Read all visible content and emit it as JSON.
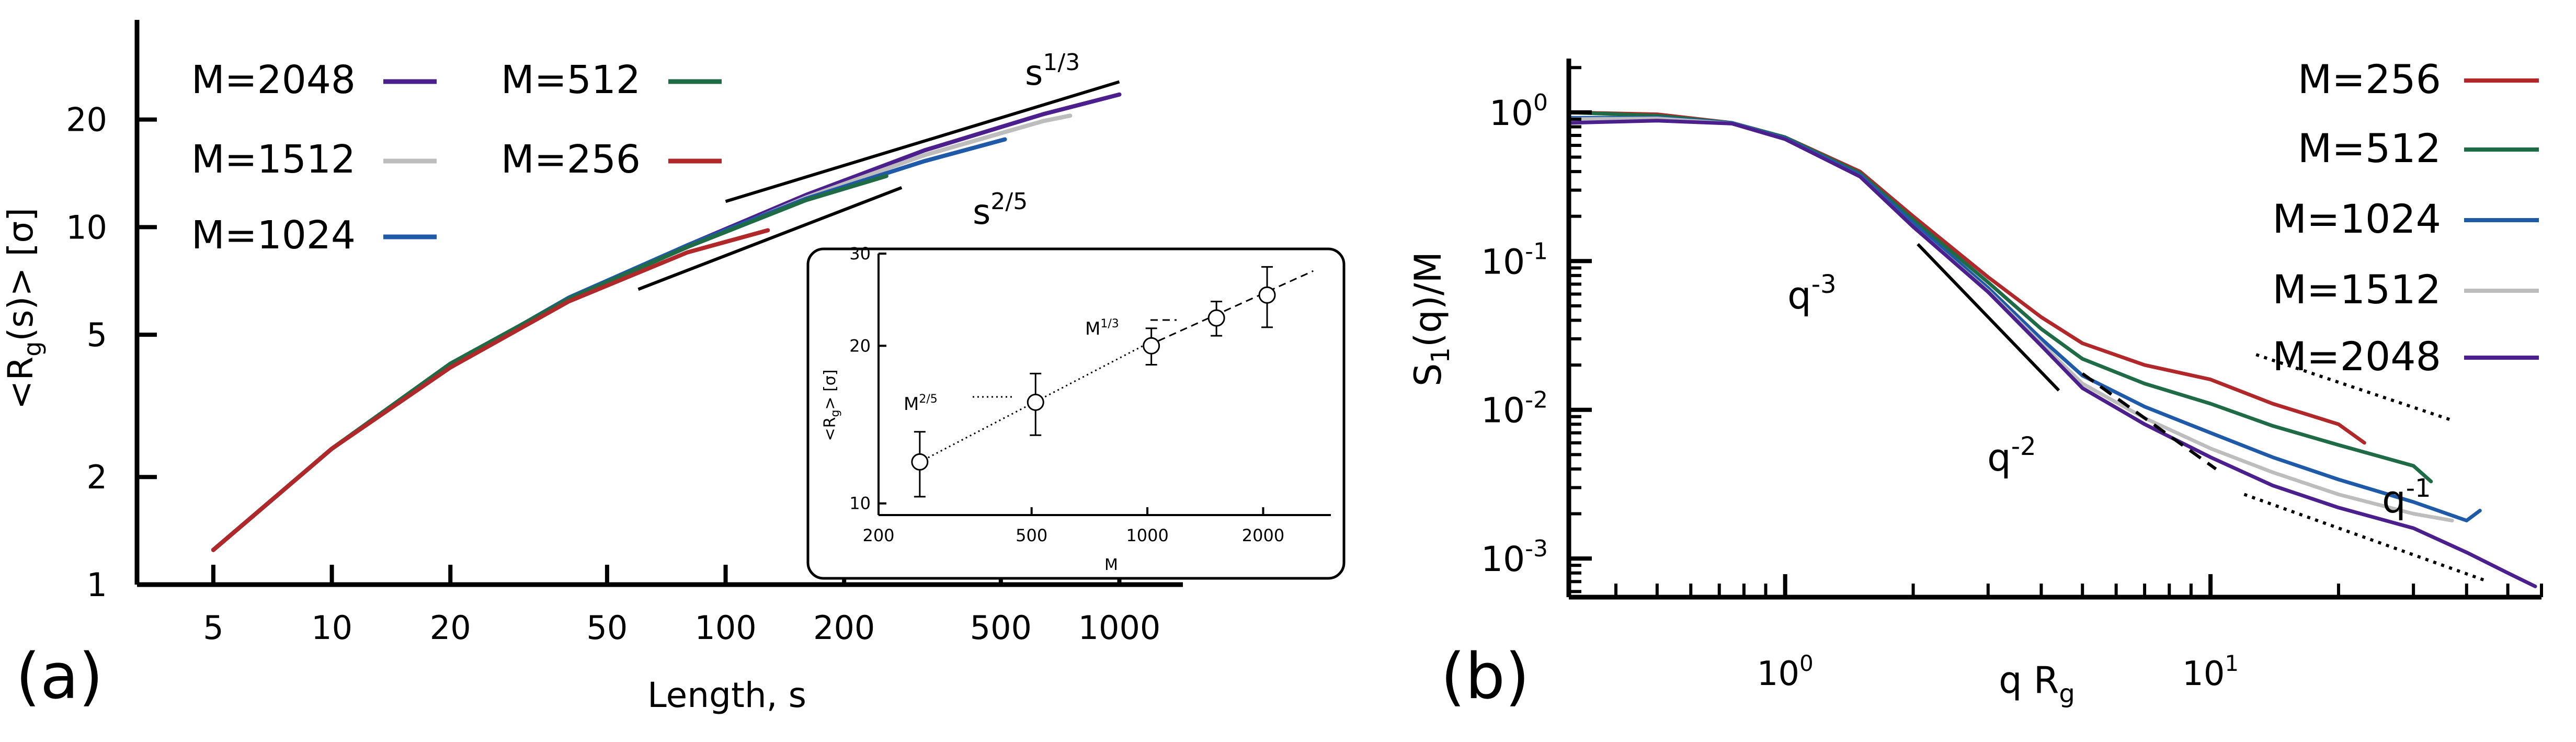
{
  "chart_data": [
    {
      "panel": "(a)",
      "type": "line",
      "xscale": "log",
      "yscale": "log",
      "xlabel": "Length, s",
      "ylabel_parts": [
        "<R",
        "g",
        "(s)> [σ]"
      ],
      "xlim": [
        3.2,
        1450
      ],
      "ylim": [
        1,
        38
      ],
      "xticks": [
        5,
        10,
        20,
        50,
        100,
        200,
        500,
        1000
      ],
      "xtick_labels": [
        "5",
        "10",
        "20",
        "50",
        "100",
        "200",
        "500",
        "1000"
      ],
      "yticks": [
        1,
        2,
        5,
        10,
        20
      ],
      "ytick_labels": [
        "1",
        "2",
        "5",
        "10",
        "20"
      ],
      "legend": [
        {
          "label": "M=2048",
          "color": "#4b1f8c"
        },
        {
          "label": "M=512",
          "color": "#1f6b45"
        },
        {
          "label": "M=1512",
          "color": "#bdbdbd"
        },
        {
          "label": "M=256",
          "color": "#b0282a"
        },
        {
          "label": "M=1024",
          "color": "#1f5aa8"
        }
      ],
      "series": [
        {
          "name": "M=2048",
          "color": "#4b1f8c",
          "x": [
            5,
            10,
            20,
            40,
            80,
            160,
            320,
            640,
            1000
          ],
          "y": [
            1.25,
            2.4,
            4.1,
            6.3,
            8.9,
            12.3,
            16.4,
            20.7,
            23.5
          ]
        },
        {
          "name": "M=1512",
          "color": "#bdbdbd",
          "x": [
            5,
            10,
            20,
            40,
            80,
            160,
            320,
            640,
            750
          ],
          "y": [
            1.25,
            2.4,
            4.1,
            6.3,
            8.8,
            12.1,
            15.9,
            19.8,
            20.5
          ]
        },
        {
          "name": "M=1024",
          "color": "#1f5aa8",
          "x": [
            5,
            10,
            20,
            40,
            80,
            160,
            320,
            512
          ],
          "y": [
            1.25,
            2.4,
            4.1,
            6.35,
            8.9,
            12.0,
            15.3,
            17.6
          ]
        },
        {
          "name": "M=512",
          "color": "#1f6b45",
          "x": [
            5,
            10,
            20,
            40,
            80,
            160,
            256
          ],
          "y": [
            1.25,
            2.4,
            4.15,
            6.3,
            8.8,
            11.9,
            13.9
          ]
        },
        {
          "name": "M=256",
          "color": "#b0282a",
          "x": [
            5,
            10,
            20,
            40,
            80,
            128
          ],
          "y": [
            1.25,
            2.4,
            4.05,
            6.2,
            8.5,
            9.8
          ]
        }
      ],
      "guides": [
        {
          "label_base": "s",
          "label_exp": "1/3",
          "x": [
            100,
            1000
          ],
          "y": [
            11.8,
            25.5
          ]
        },
        {
          "label_base": "s",
          "label_exp": "2/5",
          "x": [
            60,
            280
          ],
          "y": [
            6.7,
            12.9
          ]
        }
      ],
      "inset": {
        "type": "scatter",
        "xscale": "log",
        "yscale": "log",
        "xlabel": "M",
        "ylabel_parts": [
          "<R",
          "g",
          "> [σ]"
        ],
        "xlim": [
          200,
          3000
        ],
        "ylim": [
          9.5,
          30
        ],
        "xticks": [
          200,
          500,
          1000,
          2000
        ],
        "xtick_labels": [
          "200",
          "500",
          "1000",
          "2000"
        ],
        "yticks": [
          10,
          20,
          30
        ],
        "ytick_labels": [
          "10",
          "20",
          "30"
        ],
        "points": [
          {
            "x": 256,
            "y": 12.0,
            "err": 1.7
          },
          {
            "x": 512,
            "y": 15.6,
            "err": 2.1
          },
          {
            "x": 1024,
            "y": 20.0,
            "err": 1.6
          },
          {
            "x": 1512,
            "y": 22.6,
            "err": 1.7
          },
          {
            "x": 2048,
            "y": 25.0,
            "err": 3.3
          }
        ],
        "fits": [
          {
            "label_base": "M",
            "label_exp": "2/5",
            "style": "dotted",
            "x": [
              256,
              1000
            ],
            "y": [
              12.0,
              20.2
            ]
          },
          {
            "label_base": "M",
            "label_exp": "1/3",
            "style": "dashed",
            "x": [
              1000,
              2700
            ],
            "y": [
              20.0,
              27.8
            ]
          }
        ]
      }
    },
    {
      "panel": "(b)",
      "type": "line",
      "xscale": "log",
      "yscale": "log",
      "xlabel_parts": [
        "q R",
        "g"
      ],
      "ylabel_parts": [
        "S",
        "1",
        "(q)/M"
      ],
      "xlim": [
        0.31,
        60
      ],
      "ylim": [
        0.00055,
        2.3
      ],
      "xticks": [
        1,
        10
      ],
      "xtick_labels": [
        {
          "base": "10",
          "exp": "0"
        },
        {
          "base": "10",
          "exp": "1"
        }
      ],
      "yticks": [
        0.001,
        0.01,
        0.1,
        1
      ],
      "ytick_labels": [
        {
          "base": "10",
          "exp": "-3"
        },
        {
          "base": "10",
          "exp": "-2"
        },
        {
          "base": "10",
          "exp": "-1"
        },
        {
          "base": "10",
          "exp": "0"
        }
      ],
      "legend": [
        {
          "label": "M=256",
          "color": "#b0282a"
        },
        {
          "label": "M=512",
          "color": "#1f6b45"
        },
        {
          "label": "M=1024",
          "color": "#1f5aa8"
        },
        {
          "label": "M=1512",
          "color": "#bdbdbd"
        },
        {
          "label": "M=2048",
          "color": "#4b1f8c"
        }
      ],
      "series": [
        {
          "name": "M=256",
          "color": "#b0282a",
          "x": [
            0.31,
            0.5,
            0.75,
            1.0,
            1.5,
            2.0,
            3.0,
            4.0,
            5.0,
            7.0,
            10.0,
            14.0,
            20.0,
            23.0
          ],
          "y": [
            1.0,
            0.97,
            0.85,
            0.68,
            0.4,
            0.2,
            0.078,
            0.042,
            0.028,
            0.02,
            0.016,
            0.011,
            0.008,
            0.006
          ]
        },
        {
          "name": "M=512",
          "color": "#1f6b45",
          "x": [
            0.31,
            0.5,
            0.75,
            1.0,
            1.5,
            2.0,
            3.0,
            4.0,
            5.0,
            7.0,
            10.0,
            14.0,
            20.0,
            30.0,
            33.0
          ],
          "y": [
            1.0,
            0.95,
            0.85,
            0.68,
            0.39,
            0.19,
            0.072,
            0.035,
            0.022,
            0.015,
            0.011,
            0.0078,
            0.0058,
            0.0042,
            0.0033
          ]
        },
        {
          "name": "M=1024",
          "color": "#1f5aa8",
          "x": [
            0.31,
            0.5,
            0.75,
            1.0,
            1.5,
            2.0,
            3.0,
            4.0,
            5.0,
            7.0,
            10.0,
            14.0,
            20.0,
            30.0,
            40.0,
            43.0
          ],
          "y": [
            0.92,
            0.92,
            0.85,
            0.67,
            0.38,
            0.18,
            0.066,
            0.03,
            0.017,
            0.0105,
            0.007,
            0.0048,
            0.0034,
            0.0024,
            0.0018,
            0.0021
          ]
        },
        {
          "name": "M=1512",
          "color": "#bdbdbd",
          "x": [
            0.31,
            0.5,
            0.75,
            1.0,
            1.5,
            2.0,
            3.0,
            4.0,
            5.0,
            7.0,
            10.0,
            14.0,
            20.0,
            30.0,
            37.0
          ],
          "y": [
            0.9,
            0.91,
            0.84,
            0.66,
            0.37,
            0.17,
            0.063,
            0.028,
            0.015,
            0.0088,
            0.0055,
            0.0038,
            0.0027,
            0.002,
            0.0018
          ]
        },
        {
          "name": "M=2048",
          "color": "#4b1f8c",
          "x": [
            0.31,
            0.5,
            0.75,
            1.0,
            1.5,
            2.0,
            3.0,
            4.0,
            5.0,
            7.0,
            10.0,
            14.0,
            20.0,
            30.0,
            40.0,
            50.0,
            58.0
          ],
          "y": [
            0.85,
            0.88,
            0.84,
            0.66,
            0.37,
            0.17,
            0.062,
            0.027,
            0.014,
            0.008,
            0.0048,
            0.0031,
            0.0022,
            0.0016,
            0.0011,
            0.0008,
            0.00065
          ]
        }
      ],
      "guides": [
        {
          "label_base": "q",
          "label_exp": "-3",
          "style": "solid",
          "x": [
            2.05,
            4.4
          ],
          "y": [
            0.13,
            0.0135
          ]
        },
        {
          "label_base": "q",
          "label_exp": "-2",
          "style": "dashed",
          "x": [
            5.0,
            10.3
          ],
          "y": [
            0.0175,
            0.004
          ]
        },
        {
          "label_base": "q",
          "label_exp": "-1",
          "style": "dotted",
          "x": [
            12.8,
            37.0
          ],
          "y": [
            0.0235,
            0.0085
          ]
        },
        {
          "label_base": "",
          "label_exp": "",
          "style": "dotted",
          "x": [
            12.0,
            45.0
          ],
          "y": [
            0.0027,
            0.0007
          ]
        }
      ]
    }
  ]
}
